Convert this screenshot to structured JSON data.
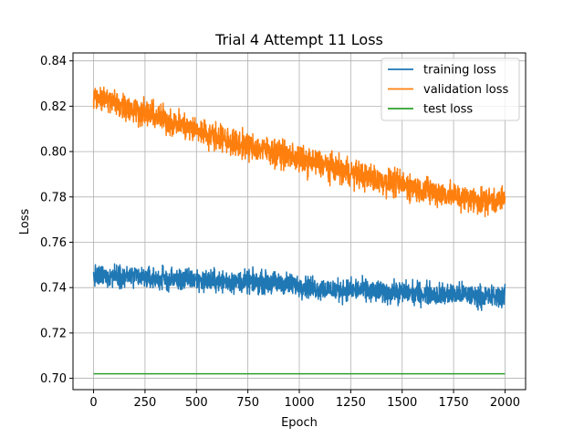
{
  "chart_data": {
    "type": "line",
    "title": "Trial 4 Attempt 11 Loss",
    "xlabel": "Epoch",
    "ylabel": "Loss",
    "xlim": [
      -100,
      2100
    ],
    "ylim": [
      0.695,
      0.8435
    ],
    "xticks": [
      0,
      250,
      500,
      750,
      1000,
      1250,
      1500,
      1750,
      2000
    ],
    "xtick_labels": [
      "0",
      "250",
      "500",
      "750",
      "1000",
      "1250",
      "1500",
      "1750",
      "2000"
    ],
    "yticks": [
      0.7,
      0.72,
      0.74,
      0.76,
      0.78,
      0.8,
      0.82,
      0.84
    ],
    "ytick_labels": [
      "0.70",
      "0.72",
      "0.74",
      "0.76",
      "0.78",
      "0.80",
      "0.82",
      "0.84"
    ],
    "grid": true,
    "legend_position": "top-right",
    "series": [
      {
        "name": "training loss",
        "color": "#1f77b4",
        "x": [
          0,
          100,
          200,
          300,
          400,
          500,
          600,
          700,
          800,
          900,
          1000,
          1100,
          1200,
          1300,
          1400,
          1500,
          1600,
          1700,
          1800,
          1900,
          2000
        ],
        "values": [
          0.7445,
          0.7455,
          0.7445,
          0.744,
          0.7435,
          0.7435,
          0.743,
          0.7425,
          0.7425,
          0.742,
          0.741,
          0.7395,
          0.739,
          0.739,
          0.738,
          0.738,
          0.7375,
          0.737,
          0.737,
          0.736,
          0.736
        ],
        "noise_amplitude": 0.0045,
        "samples": 2001
      },
      {
        "name": "validation loss",
        "color": "#ff7f0e",
        "x": [
          0,
          100,
          200,
          300,
          400,
          500,
          600,
          700,
          800,
          900,
          1000,
          1100,
          1200,
          1300,
          1400,
          1500,
          1600,
          1700,
          1800,
          1900,
          2000
        ],
        "values": [
          0.825,
          0.8215,
          0.8185,
          0.8155,
          0.8125,
          0.8095,
          0.8065,
          0.8035,
          0.8015,
          0.7995,
          0.7965,
          0.7945,
          0.792,
          0.7895,
          0.787,
          0.7855,
          0.783,
          0.7815,
          0.7795,
          0.7785,
          0.7785
        ],
        "noise_amplitude": 0.0055,
        "samples": 2001
      },
      {
        "name": "test loss",
        "color": "#2ca02c",
        "x": [
          0,
          2000
        ],
        "values": [
          0.702,
          0.702
        ],
        "noise_amplitude": 0,
        "samples": 2
      }
    ]
  }
}
